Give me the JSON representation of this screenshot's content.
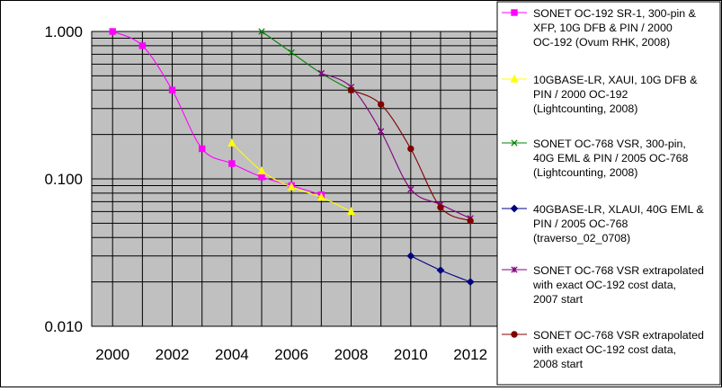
{
  "chart_data": {
    "type": "line",
    "yscale": "log",
    "ylim": [
      0.01,
      1.0
    ],
    "xlim": [
      1999.3,
      2012.9
    ],
    "y_ticks": [
      "1.000",
      "0.100",
      "0.010"
    ],
    "x_ticks": [
      "2000",
      "2002",
      "2004",
      "2006",
      "2008",
      "2010",
      "2012"
    ],
    "grid": true,
    "legend_position": "right",
    "colors": {
      "plot_background": "#c0c0c0",
      "grid": "#000000"
    },
    "series": [
      {
        "name": "SONET OC-192 SR-1, 300-pin & XFP, 10G DFB & PIN / 2000 OC-192 (Ovum RHK, 2008)",
        "color": "#ff00ff",
        "marker": "square",
        "x": [
          2000,
          2001,
          2002,
          2003,
          2004,
          2005,
          2006,
          2007
        ],
        "y": [
          1.0,
          0.8,
          0.4,
          0.16,
          0.127,
          0.103,
          0.09,
          0.078
        ]
      },
      {
        "name": "10GBASE-LR, XAUI, 10G DFB & PIN / 2000 OC-192 (Lightcounting, 2008)",
        "color": "#ffff00",
        "marker": "triangle",
        "x": [
          2004,
          2005,
          2006,
          2007,
          2008
        ],
        "y": [
          0.175,
          0.113,
          0.088,
          0.075,
          0.06
        ]
      },
      {
        "name": "SONET OC-768 VSR, 300-pin, 40G EML & PIN / 2005 OC-768 (Lightcounting, 2008)",
        "color": "#008000",
        "marker": "x",
        "x": [
          2005,
          2006,
          2007,
          2008
        ],
        "y": [
          1.0,
          0.72,
          0.52,
          0.4
        ]
      },
      {
        "name": "40GBASE-LR,  XLAUI, 40G EML & PIN / 2005 OC-768 (traverso_02_0708)",
        "color": "#000080",
        "marker": "diamond",
        "x": [
          2010,
          2011,
          2012
        ],
        "y": [
          0.03,
          0.024,
          0.02
        ]
      },
      {
        "name": "SONET OC-768 VSR extrapolated with exact OC-192 cost data, 2007 start",
        "color": "#800080",
        "marker": "star",
        "x": [
          2007,
          2008,
          2009,
          2010,
          2011,
          2012
        ],
        "y": [
          0.52,
          0.42,
          0.21,
          0.085,
          0.067,
          0.054
        ]
      },
      {
        "name": "SONET OC-768 VSR extrapolated with exact OC-192 cost data, 2008 start",
        "color": "#800000",
        "marker": "circle",
        "x": [
          2008,
          2009,
          2010,
          2011,
          2012
        ],
        "y": [
          0.4,
          0.32,
          0.16,
          0.064,
          0.052
        ]
      }
    ]
  }
}
